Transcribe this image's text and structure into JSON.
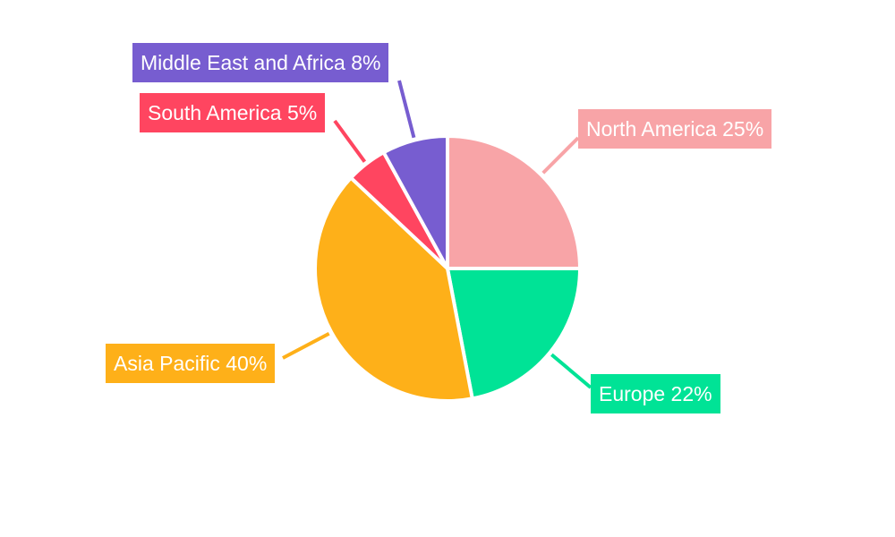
{
  "chart_data": {
    "type": "pie",
    "title": "",
    "start_angle": "top",
    "direction": "clockwise",
    "legend": "none",
    "slices": [
      {
        "label": "North America",
        "value": 25,
        "data_label": "North America 25%",
        "color": "#F8A4A7"
      },
      {
        "label": "Europe",
        "value": 22,
        "data_label": "Europe 22%",
        "color": "#00E396"
      },
      {
        "label": "Asia Pacific",
        "value": 40,
        "data_label": "Asia Pacific 40%",
        "color": "#FEB019"
      },
      {
        "label": "South America",
        "value": 5,
        "data_label": "South America 5%",
        "color": "#FF4560"
      },
      {
        "label": "Middle East and Africa",
        "value": 8,
        "data_label": "Middle East and Africa 8%",
        "color": "#775DD0"
      }
    ]
  }
}
